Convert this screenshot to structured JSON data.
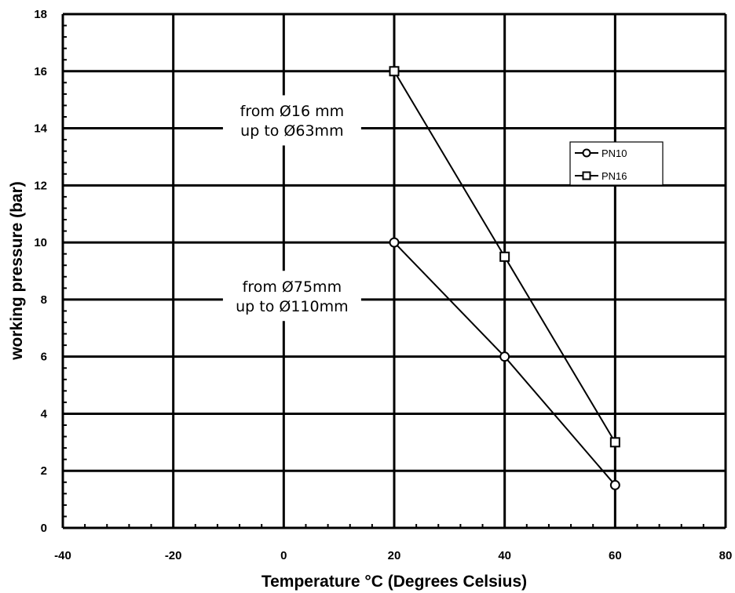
{
  "chart_data": {
    "type": "line",
    "xlabel": "Temperature °C (Degrees Celsius)",
    "ylabel": "working pressure (bar)",
    "xlim": [
      -40,
      80
    ],
    "ylim": [
      0,
      18
    ],
    "xticks": [
      -40,
      -20,
      0,
      20,
      40,
      60,
      80
    ],
    "yticks": [
      0,
      2,
      4,
      6,
      8,
      10,
      12,
      14,
      16,
      18
    ],
    "grid": true,
    "legend_position": "right",
    "series": [
      {
        "name": "PN10",
        "marker": "circle",
        "x": [
          20,
          40,
          60
        ],
        "y": [
          10,
          6,
          1.5
        ]
      },
      {
        "name": "PN16",
        "marker": "square",
        "x": [
          20,
          40,
          60
        ],
        "y": [
          16,
          9.5,
          3
        ]
      }
    ],
    "annotations": [
      {
        "lines": [
          "from Ø16 mm",
          "up to Ø63mm"
        ]
      },
      {
        "lines": [
          "from Ø75mm",
          "up to Ø110mm"
        ]
      }
    ]
  }
}
